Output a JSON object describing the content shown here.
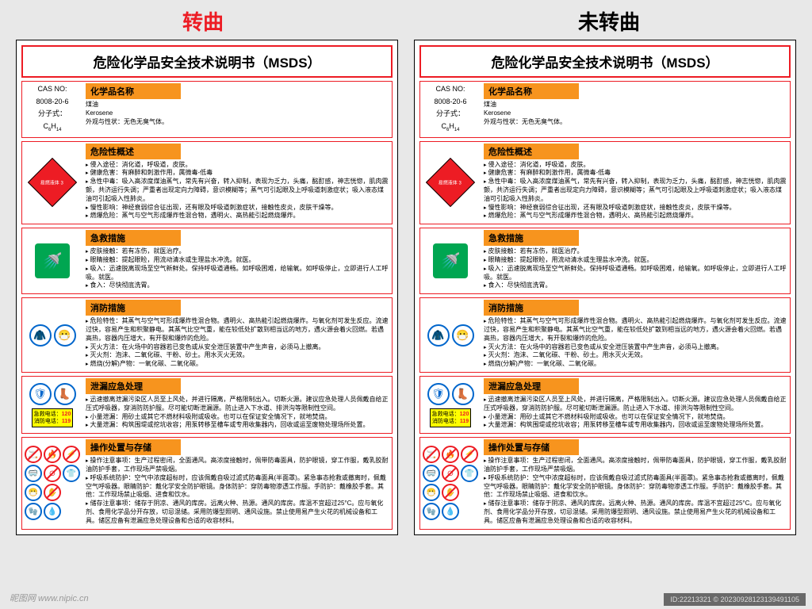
{
  "colors": {
    "header_left": "#ed1c24",
    "header_right": "#000000",
    "panel_border": "#000000",
    "section_border": "#ed1c24",
    "heading_bg": "#f7941e",
    "diamond_bg": "#ed1c24",
    "green_icon": "#00a651",
    "blue_icon": "#0066cc",
    "phone_bg": "#ffff00",
    "page_bg": "#e8e8e8"
  },
  "header_left": "转曲",
  "header_right": "未转曲",
  "panel_title": "危险化学品安全技术说明书（MSDS）",
  "watermark_left": "昵图网  www.nipic.cn",
  "watermark_right": "ID:22213321 © 20230928123139491105",
  "s1": {
    "heading": "化学品名称",
    "cas_label": "CAS NO:",
    "cas_value": "8008-20-6",
    "formula_label": "分子式：",
    "formula_value": "C6H14",
    "name_cn": "煤油",
    "name_en": "Kerosene",
    "appearance_label": "外观与性状：",
    "appearance_value": "无色无臭气体。"
  },
  "s2": {
    "heading": "危险性概述",
    "diamond_label": "易燃液体 3",
    "items": [
      "侵入途径：消化道，呼吸道，皮肤。",
      "健康危害：有麻醉和刺激作用，属微毒-低毒",
      "急性中毒：吸入高浓度煤油蒸气，常先有兴奋，转入抑制，表现为乏力，头痛，酩酊感，神志恍惚，肌肉震颤，共济运行失调；严重者出现定向力障碍，意识模糊等；蒸气可引起眼及上呼吸道刺激症状；吸入液态煤油可引起吸入性肺炎。",
      "慢性影响：神经衰弱综合征出现，还有眼及呼吸道刺激症状，接触性皮炎，皮肤干燥等。",
      "燃爆危险：蒸气与空气形成爆炸性混合物，遇明火、高热能引起燃烧爆炸。"
    ]
  },
  "s3": {
    "heading": "急救措施",
    "items": [
      "皮肤接触：若有冻伤，就医治疗。",
      "眼睛接触：提起眼睑，用流动清水或生理盐水冲洗。就医。",
      "吸入：迅速脱离现场至空气新鲜处。保持呼吸道通畅。如呼吸困难，给输氧。如呼吸停止，立即进行人工呼吸。就医。",
      "食入：尽快彻底洗胃。"
    ]
  },
  "s4": {
    "heading": "消防措施",
    "items": [
      "危险特性：其蒸气与空气可形成爆炸性混合物。遇明火、高热能引起燃烧爆炸。与氧化剂可发生反应。流速过快，容易产生和积聚静电。其蒸气比空气重，能在较低处扩散到相当远的地方，遇火源会着火回燃。若遇高热，容器内压增大，有开裂和爆炸的危险。",
      "灭火方法：在火场中的容器若已变色或从安全泄压装置中产生声音，必须马上撤离。",
      "灭火剂：泡沫、二氧化碳、干粉、砂土。用水灭火无效。",
      "燃烧(分解)产物：一氧化碳、二氧化碳。"
    ]
  },
  "s5": {
    "heading": "泄漏应急处理",
    "phone": {
      "line1_label": "急救电话：",
      "line1_num": "120",
      "line2_label": "消防电话：",
      "line2_num": "119"
    },
    "items": [
      "迅速撤离泄漏污染区人员至上风处，并进行隔离，严格限制出入。切断火源。建议应急处理人员佩戴自给正压式呼吸器，穿消防防护服。尽可能切断泄漏源。防止进入下水道、排洪沟等限制性空间。",
      "小量泄漏：用砂土或其它不燃材料吸附或吸收。也可以在保证安全情况下，就地焚烧。",
      "大量泄漏：构筑围堤或挖坑收容；用泵转移至槽车或专用收集器内，回收或运至废物处理场所处置。"
    ]
  },
  "s6": {
    "heading": "操作处置与存储",
    "items": [
      "操作注意事项：生产过程密闭，全面通风。高浓度接触时，佩带防毒面具，防护眼镜，穿工作服，戴乳胶耐油防护手套，工作现场严禁吸烟。",
      "呼吸系统防护：空气中浓度超标时，应该佩戴自吸过滤式防毒面具(半面罩)。紧急事态抢救或撤离时，佩戴空气呼吸器。眼睛防护：戴化学安全防护眼镜。身体防护：穿防毒物渗透工作服。手防护：戴橡胶手套。其他：工作现场禁止吸烟、进食和饮水。",
      "储存注意事项：储存于阴凉、通风的库房。远离火种、热源。通风的库房。库温不宜超过25°C。应与氧化剂、食用化学品分开存放，切忌混储。采用防爆型照明、通风设施。禁止使用易产生火花的机械设备和工具。储区应备有泄漏应急处理设备和合适的收容材料。"
    ]
  }
}
